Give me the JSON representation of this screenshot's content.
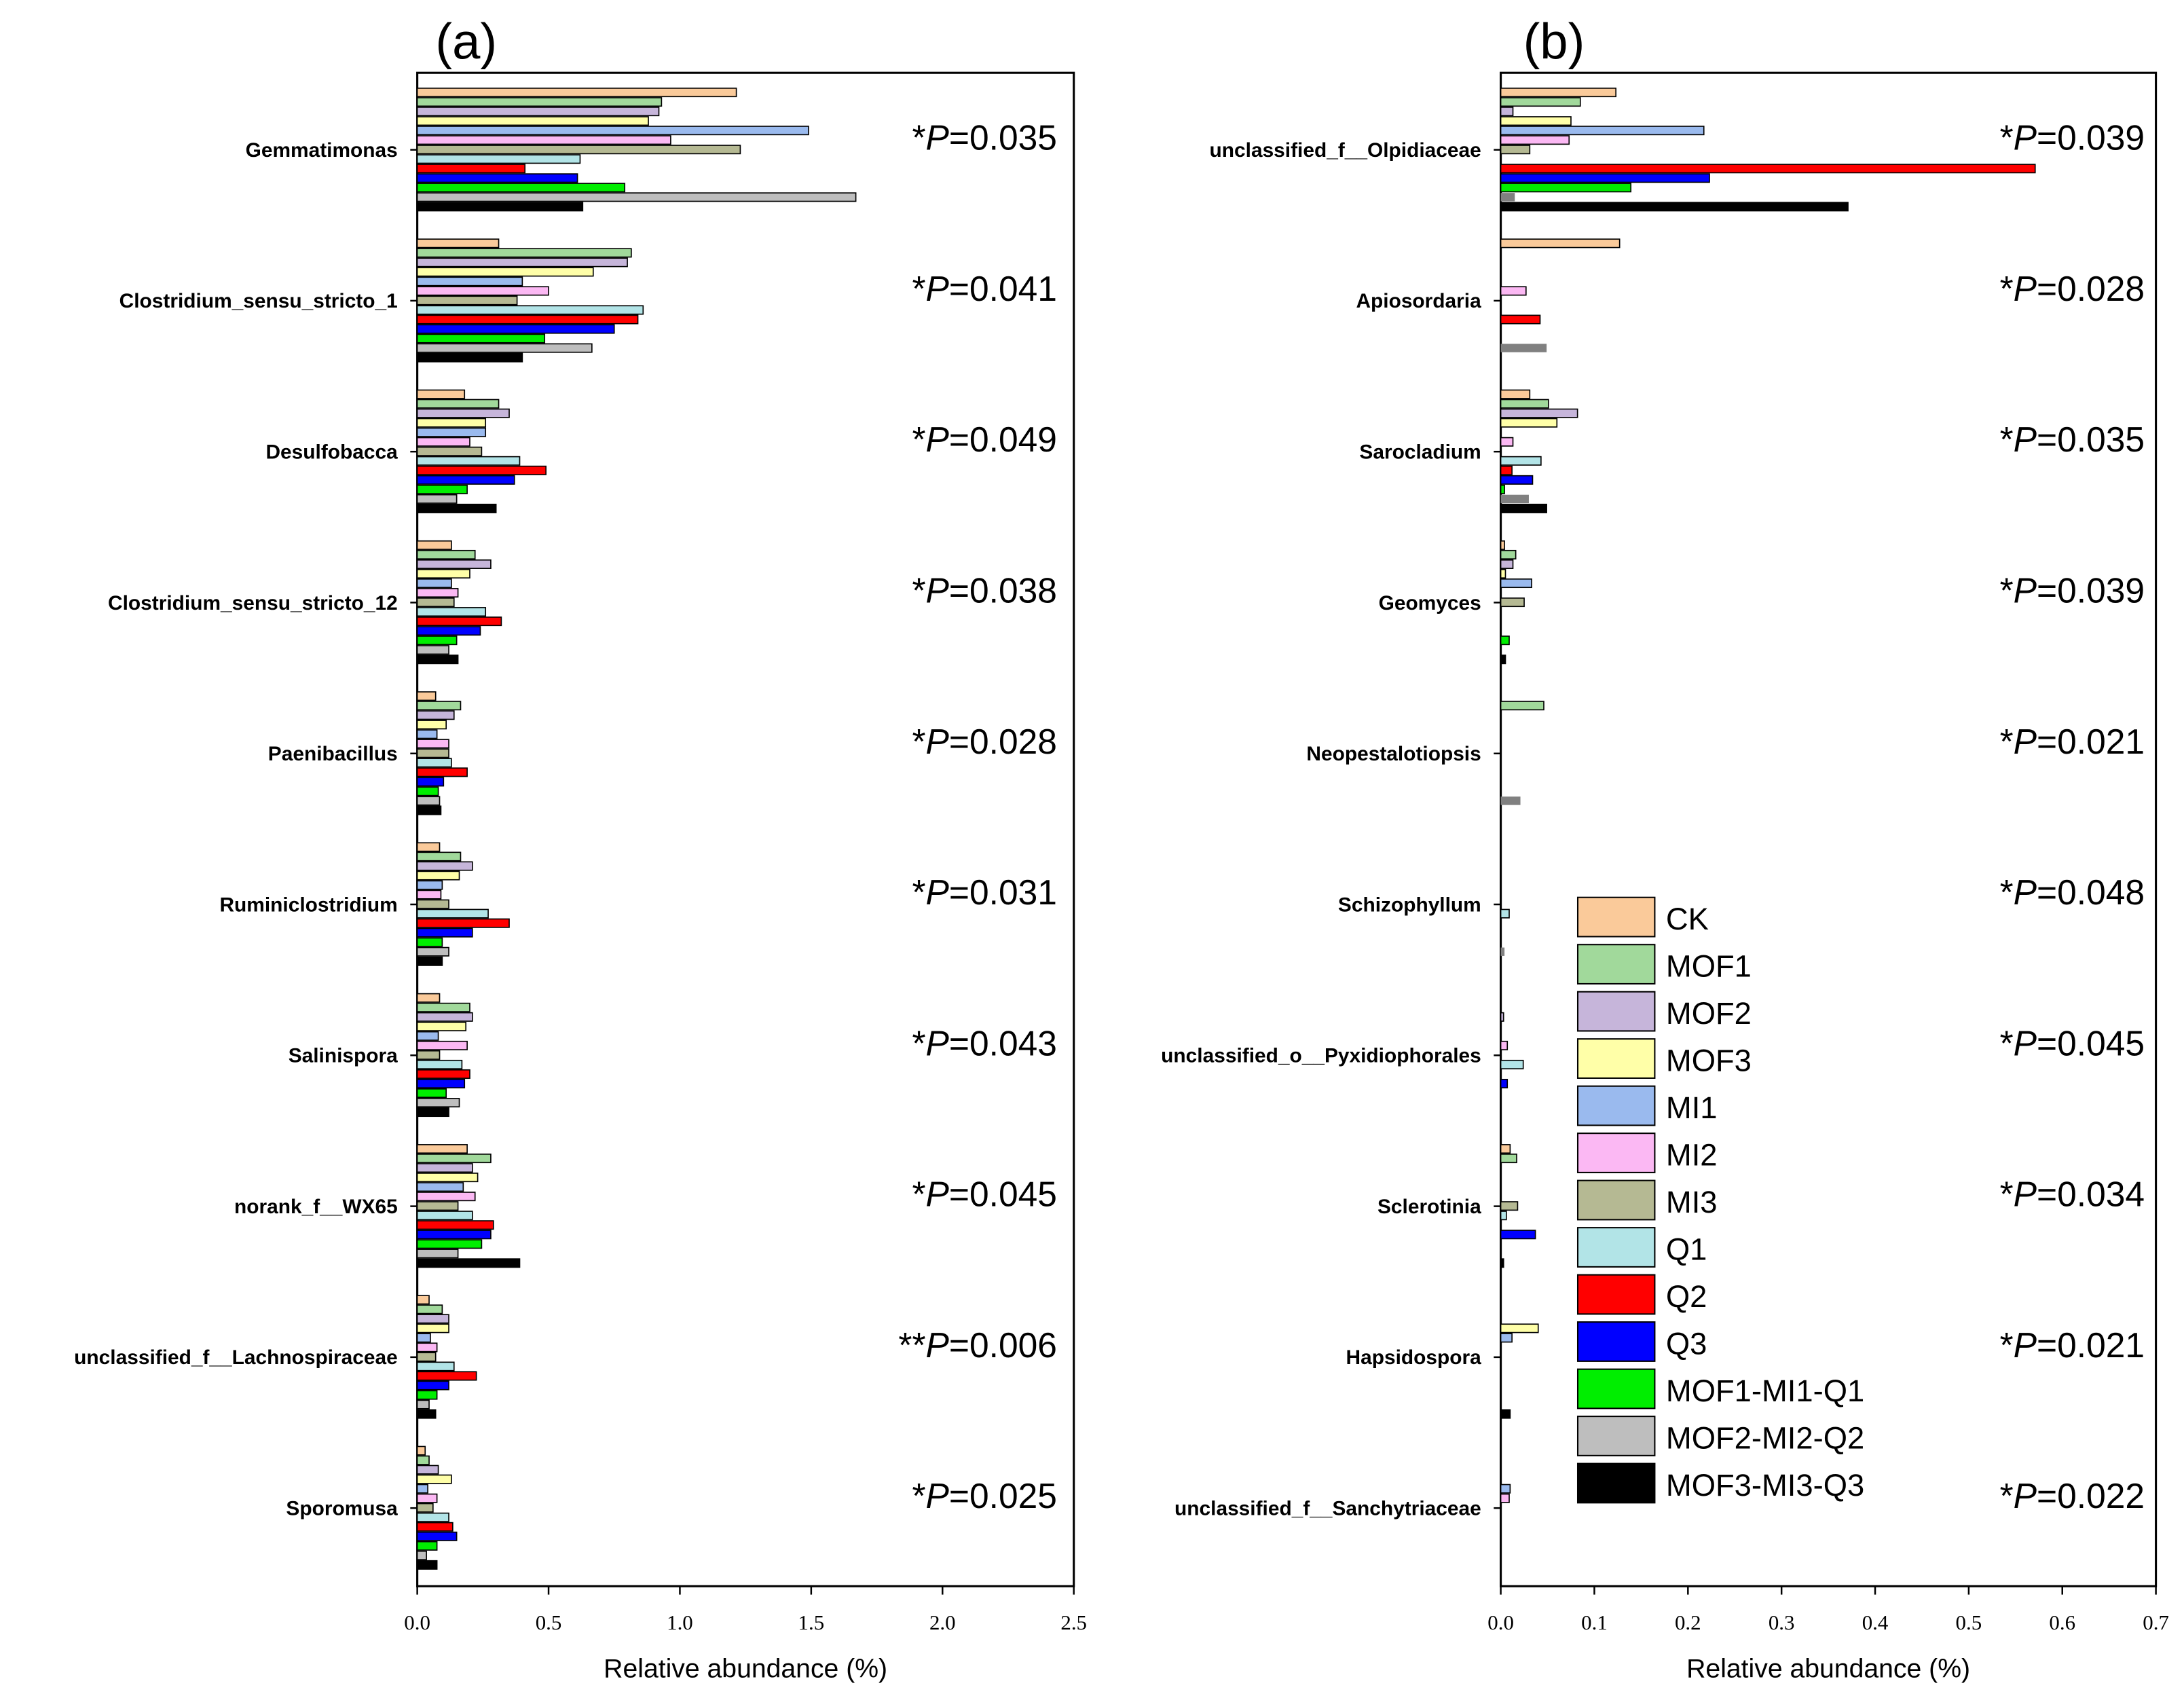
{
  "chart_data": [
    {
      "type": "bar",
      "orientation": "horizontal",
      "panel_label": "(a)",
      "xlabel": "Relative abundance (%)",
      "xlim": [
        0,
        2.5
      ],
      "xticks": [
        "0.0",
        "0.5",
        "1.0",
        "1.5",
        "2.0",
        "2.5"
      ],
      "categories": [
        "Gemmatimonas",
        "Clostridium_sensu_stricto_1",
        "Desulfobacca",
        "Clostridium_sensu_stricto_12",
        "Paenibacillus",
        "Ruminiclostridium",
        "Salinispora",
        "norank_f__WX65",
        "unclassified_f__Lachnospiraceae",
        "Sporomusa"
      ],
      "pvalues": [
        {
          "stars": "*",
          "label": "P",
          "value": "=0.035"
        },
        {
          "stars": "*",
          "label": "P",
          "value": "=0.041"
        },
        {
          "stars": "*",
          "label": "P",
          "value": "=0.049"
        },
        {
          "stars": "*",
          "label": "P",
          "value": "=0.038"
        },
        {
          "stars": "*",
          "label": "P",
          "value": "=0.028"
        },
        {
          "stars": "*",
          "label": "P",
          "value": "=0.031"
        },
        {
          "stars": "*",
          "label": "P",
          "value": "=0.043"
        },
        {
          "stars": "*",
          "label": "P",
          "value": "=0.045"
        },
        {
          "stars": "**",
          "label": "P",
          "value": "=0.006"
        },
        {
          "stars": "*",
          "label": "P",
          "value": "=0.025"
        }
      ],
      "series": [
        {
          "name": "CK",
          "values": [
            1.215,
            0.31,
            0.18,
            0.13,
            0.07,
            0.085,
            0.085,
            0.19,
            0.045,
            0.03
          ]
        },
        {
          "name": "MOF1",
          "values": [
            0.93,
            0.815,
            0.31,
            0.22,
            0.165,
            0.165,
            0.2,
            0.28,
            0.095,
            0.045
          ]
        },
        {
          "name": "MOF2",
          "values": [
            0.92,
            0.8,
            0.35,
            0.28,
            0.14,
            0.21,
            0.21,
            0.21,
            0.12,
            0.08
          ]
        },
        {
          "name": "MOF3",
          "values": [
            0.88,
            0.67,
            0.26,
            0.2,
            0.11,
            0.16,
            0.185,
            0.23,
            0.12,
            0.13
          ]
        },
        {
          "name": "MI1",
          "values": [
            1.49,
            0.4,
            0.26,
            0.13,
            0.075,
            0.095,
            0.08,
            0.175,
            0.05,
            0.04
          ]
        },
        {
          "name": "MI2",
          "values": [
            0.965,
            0.5,
            0.2,
            0.155,
            0.12,
            0.09,
            0.19,
            0.22,
            0.075,
            0.075
          ]
        },
        {
          "name": "MI3",
          "values": [
            1.23,
            0.38,
            0.245,
            0.14,
            0.12,
            0.12,
            0.085,
            0.155,
            0.07,
            0.06
          ]
        },
        {
          "name": "Q1",
          "values": [
            0.62,
            0.86,
            0.39,
            0.26,
            0.13,
            0.27,
            0.17,
            0.21,
            0.14,
            0.12
          ]
        },
        {
          "name": "Q2",
          "values": [
            0.41,
            0.84,
            0.49,
            0.32,
            0.19,
            0.35,
            0.2,
            0.29,
            0.225,
            0.135
          ]
        },
        {
          "name": "Q3",
          "values": [
            0.61,
            0.75,
            0.37,
            0.24,
            0.1,
            0.21,
            0.18,
            0.28,
            0.12,
            0.15
          ]
        },
        {
          "name": "MOF1-MI1-Q1",
          "values": [
            0.79,
            0.485,
            0.19,
            0.15,
            0.08,
            0.095,
            0.11,
            0.245,
            0.075,
            0.075
          ]
        },
        {
          "name": "MOF2-MI2-Q2",
          "values": [
            1.67,
            0.665,
            0.15,
            0.12,
            0.085,
            0.12,
            0.16,
            0.155,
            0.045,
            0.035
          ]
        },
        {
          "name": "MOF3-MI3-Q3",
          "values": [
            0.63,
            0.4,
            0.3,
            0.155,
            0.09,
            0.095,
            0.12,
            0.39,
            0.07,
            0.075
          ]
        }
      ]
    },
    {
      "type": "bar",
      "orientation": "horizontal",
      "panel_label": "(b)",
      "xlabel": "Relative abundance (%)",
      "xlim": [
        0,
        0.7
      ],
      "xticks": [
        "0.0",
        "0.1",
        "0.2",
        "0.3",
        "0.4",
        "0.5",
        "0.6",
        "0.7"
      ],
      "categories": [
        "unclassified_f__Olpidiaceae",
        "Apiosordaria",
        "Sarocladium",
        "Geomyces",
        "Neopestalotiopsis",
        "Schizophyllum",
        "unclassified_o__Pyxidiophorales",
        "Sclerotinia",
        "Hapsidospora",
        "unclassified_f__Sanchytriaceae"
      ],
      "pvalues": [
        {
          "stars": "*",
          "label": "P",
          "value": "=0.039"
        },
        {
          "stars": "*",
          "label": "P",
          "value": "=0.028"
        },
        {
          "stars": "*",
          "label": "P",
          "value": "=0.035"
        },
        {
          "stars": "*",
          "label": "P",
          "value": "=0.039"
        },
        {
          "stars": "*",
          "label": "P",
          "value": "=0.021"
        },
        {
          "stars": "*",
          "label": "P",
          "value": "=0.048"
        },
        {
          "stars": "*",
          "label": "P",
          "value": "=0.045"
        },
        {
          "stars": "*",
          "label": "P",
          "value": "=0.034"
        },
        {
          "stars": "*",
          "label": "P",
          "value": "=0.021"
        },
        {
          "stars": "*",
          "label": "P",
          "value": "=0.022"
        }
      ],
      "series": [
        {
          "name": "CK",
          "values": [
            0.123,
            0.127,
            0.031,
            0.004,
            0,
            0,
            0,
            0.01,
            0,
            0
          ]
        },
        {
          "name": "MOF1",
          "values": [
            0.085,
            0,
            0.051,
            0.016,
            0.046,
            0,
            0,
            0.017,
            0,
            0
          ]
        },
        {
          "name": "MOF2",
          "values": [
            0.013,
            0,
            0.082,
            0.013,
            0,
            0,
            0.003,
            0,
            0,
            0
          ]
        },
        {
          "name": "MOF3",
          "values": [
            0.075,
            0,
            0.06,
            0.005,
            0,
            0,
            0,
            0,
            0.04,
            0
          ]
        },
        {
          "name": "MI1",
          "values": [
            0.217,
            0,
            0,
            0.033,
            0,
            0,
            0,
            0,
            0.012,
            0.01
          ]
        },
        {
          "name": "MI2",
          "values": [
            0.073,
            0.027,
            0.013,
            0,
            0,
            0,
            0.007,
            0,
            0,
            0.009
          ]
        },
        {
          "name": "MI3",
          "values": [
            0.031,
            0,
            0,
            0.025,
            0,
            0,
            0,
            0.018,
            0,
            0
          ]
        },
        {
          "name": "Q1",
          "values": [
            0,
            0,
            0.043,
            0,
            0,
            0.009,
            0.024,
            0.006,
            0,
            0
          ]
        },
        {
          "name": "Q2",
          "values": [
            0.571,
            0.042,
            0.012,
            0,
            0,
            0,
            0,
            0,
            0,
            0
          ]
        },
        {
          "name": "Q3",
          "values": [
            0.223,
            0,
            0.034,
            0,
            0,
            0,
            0.007,
            0.037,
            0,
            0
          ]
        },
        {
          "name": "MOF1-MI1-Q1",
          "values": [
            0.139,
            0,
            0.004,
            0.009,
            0,
            0,
            0,
            0,
            0,
            0
          ]
        },
        {
          "name": "MOF2-MI2-Q2",
          "values": [
            0.015,
            0.049,
            0.03,
            0,
            0.021,
            0.004,
            0,
            0,
            0,
            0
          ]
        },
        {
          "name": "MOF3-MI3-Q3",
          "values": [
            0.371,
            0,
            0.049,
            0.005,
            0,
            0,
            0,
            0.003,
            0.01,
            0
          ]
        }
      ]
    }
  ],
  "legend": [
    {
      "name": "CK",
      "color": "#FACA9A"
    },
    {
      "name": "MOF1",
      "color": "#A1D99B"
    },
    {
      "name": "MOF2",
      "color": "#C6B5DA"
    },
    {
      "name": "MOF3",
      "color": "#FFFFA8"
    },
    {
      "name": "MI1",
      "color": "#9ABAEE"
    },
    {
      "name": "MI2",
      "color": "#FBB8F3"
    },
    {
      "name": "MI3",
      "color": "#B5B993"
    },
    {
      "name": "Q1",
      "color": "#B2E4E7"
    },
    {
      "name": "Q2",
      "color": "#FF0000"
    },
    {
      "name": "Q3",
      "color": "#0000FF"
    },
    {
      "name": "MOF1-MI1-Q1",
      "color": "#00EE00"
    },
    {
      "name": "MOF2-MI2-Q2",
      "color": "#BEBEBE"
    },
    {
      "name": "MOF3-MI3-Q3",
      "color": "#000000"
    }
  ]
}
